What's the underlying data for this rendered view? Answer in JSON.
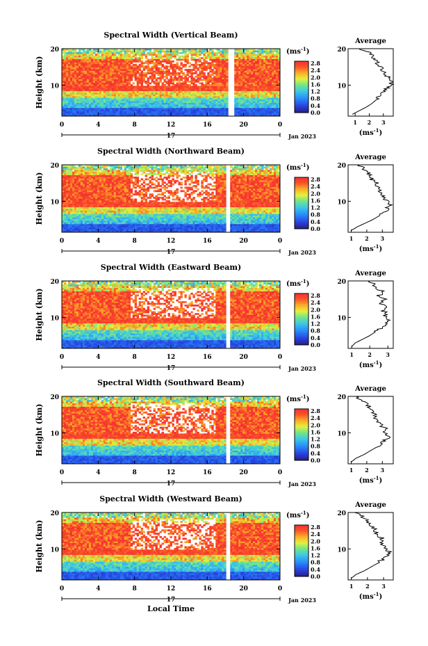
{
  "figure": {
    "xlabel_bottom": "Local Time",
    "ylabel": "Height (km)",
    "date_label": "Jan 2023",
    "day_label": "17",
    "colorbar_unit": "(ms",
    "colorbar_unit_exp": "-1",
    "colorbar_unit_close": ")",
    "avg_title": "Average",
    "avg_xlabel": "(ms",
    "avg_xlabel_exp": "-1",
    "avg_xlabel_close": ")"
  },
  "chart_data": [
    {
      "type": "heatmap",
      "title": "Spectral Width (Vertical Beam)",
      "beam": "vertical",
      "x_ticks": [
        "0",
        "4",
        "8",
        "12",
        "16",
        "20",
        "0"
      ],
      "xlim": [
        0,
        24
      ],
      "y_ticks": [
        "10",
        "20"
      ],
      "ylim": [
        1.5,
        20
      ],
      "colorbar_ticks": [
        "0.0",
        "0.4",
        "0.8",
        "1.2",
        "1.6",
        "2.0",
        "2.4",
        "2.8"
      ],
      "colorbar_range": [
        0,
        2.8
      ],
      "gap_hour": 18.6,
      "average_profile": {
        "type": "line",
        "x_ticks": [
          "1",
          "2",
          "3"
        ],
        "xlim": [
          0.5,
          3.7
        ],
        "ylim": [
          1.5,
          20
        ],
        "heights": [
          2,
          3,
          4,
          5,
          6,
          7,
          8,
          9,
          10,
          11,
          12,
          13,
          14,
          15,
          16,
          17,
          18,
          19,
          20
        ],
        "values": [
          0.8,
          1.3,
          1.8,
          2.2,
          2.5,
          2.7,
          2.9,
          3.2,
          3.5,
          3.6,
          3.4,
          3.1,
          2.9,
          2.8,
          2.6,
          2.4,
          2.2,
          2.0,
          1.3
        ]
      }
    },
    {
      "type": "heatmap",
      "title": "Spectral Width (Northward Beam)",
      "beam": "northward",
      "x_ticks": [
        "0",
        "4",
        "8",
        "12",
        "16",
        "20",
        "0"
      ],
      "xlim": [
        0,
        24
      ],
      "y_ticks": [
        "10",
        "20"
      ],
      "ylim": [
        1.5,
        20
      ],
      "colorbar_ticks": [
        "0.0",
        "0.4",
        "0.8",
        "1.2",
        "1.6",
        "2.0",
        "2.4",
        "2.8"
      ],
      "colorbar_range": [
        0,
        2.8
      ],
      "gap_hour": 18.3,
      "average_profile": {
        "type": "line",
        "x_ticks": [
          "1",
          "2",
          "3"
        ],
        "xlim": [
          0.8,
          3.7
        ],
        "ylim": [
          1.5,
          20
        ],
        "heights": [
          2,
          3,
          4,
          5,
          6,
          7,
          8,
          9,
          10,
          11,
          12,
          13,
          14,
          15,
          16,
          17,
          18,
          19,
          20
        ],
        "values": [
          1.0,
          1.4,
          1.9,
          2.4,
          2.8,
          3.1,
          3.3,
          3.6,
          3.3,
          3.1,
          3.0,
          2.8,
          2.7,
          2.6,
          2.3,
          2.2,
          2.0,
          1.8,
          1.5
        ]
      }
    },
    {
      "type": "heatmap",
      "title": "Spectral Width (Eastward Beam)",
      "beam": "eastward",
      "x_ticks": [
        "0",
        "4",
        "8",
        "12",
        "16",
        "20",
        "0"
      ],
      "xlim": [
        0,
        24
      ],
      "y_ticks": [
        "10",
        "20"
      ],
      "ylim": [
        1.5,
        20
      ],
      "colorbar_ticks": [
        "0.0",
        "0.4",
        "0.8",
        "1.2",
        "1.6",
        "2.0",
        "2.4",
        "2.8"
      ],
      "colorbar_range": [
        0,
        2.8
      ],
      "gap_hour": 18.3,
      "average_profile": {
        "type": "line",
        "x_ticks": [
          "1",
          "2",
          "3"
        ],
        "xlim": [
          0.8,
          3.3
        ],
        "ylim": [
          1.5,
          20
        ],
        "heights": [
          2,
          3,
          4,
          5,
          6,
          7,
          8,
          9,
          10,
          11,
          12,
          13,
          14,
          15,
          16,
          17,
          18,
          19,
          20
        ],
        "values": [
          1.0,
          1.2,
          1.6,
          2.0,
          2.3,
          2.6,
          2.9,
          3.1,
          2.8,
          3.0,
          2.7,
          2.9,
          2.6,
          2.8,
          2.5,
          2.7,
          2.4,
          2.2,
          2.0
        ]
      }
    },
    {
      "type": "heatmap",
      "title": "Spectral Width (Southward Beam)",
      "beam": "southward",
      "x_ticks": [
        "0",
        "4",
        "8",
        "12",
        "16",
        "20",
        "0"
      ],
      "xlim": [
        0,
        24
      ],
      "y_ticks": [
        "10",
        "20"
      ],
      "ylim": [
        1.5,
        20
      ],
      "colorbar_ticks": [
        "0.0",
        "0.4",
        "0.8",
        "1.2",
        "1.6",
        "2.0",
        "2.4",
        "2.8"
      ],
      "colorbar_range": [
        0,
        2.8
      ],
      "gap_hour": 18.3,
      "average_profile": {
        "type": "line",
        "x_ticks": [
          "1",
          "2",
          "3"
        ],
        "xlim": [
          0.8,
          3.7
        ],
        "ylim": [
          1.5,
          20
        ],
        "heights": [
          2,
          3,
          4,
          5,
          6,
          7,
          8,
          9,
          10,
          11,
          12,
          13,
          14,
          15,
          16,
          17,
          18,
          19,
          20
        ],
        "values": [
          1.0,
          1.3,
          1.8,
          2.2,
          2.6,
          2.9,
          3.2,
          3.4,
          3.1,
          3.3,
          2.9,
          2.8,
          2.6,
          2.5,
          2.4,
          2.2,
          2.0,
          1.7,
          1.3
        ]
      }
    },
    {
      "type": "heatmap",
      "title": "Spectral Width (Westward Beam)",
      "beam": "westward",
      "x_ticks": [
        "0",
        "4",
        "8",
        "12",
        "16",
        "20",
        "0"
      ],
      "xlim": [
        0,
        24
      ],
      "y_ticks": [
        "10",
        "20"
      ],
      "ylim": [
        1.5,
        20
      ],
      "colorbar_ticks": [
        "0.0",
        "0.4",
        "0.8",
        "1.2",
        "1.6",
        "2.0",
        "2.4",
        "2.8"
      ],
      "colorbar_range": [
        0,
        2.8
      ],
      "gap_hour": 18.3,
      "average_profile": {
        "type": "line",
        "x_ticks": [
          "1",
          "2",
          "3"
        ],
        "xlim": [
          0.8,
          3.6
        ],
        "ylim": [
          1.5,
          20
        ],
        "heights": [
          2,
          3,
          4,
          5,
          6,
          7,
          8,
          9,
          10,
          11,
          12,
          13,
          14,
          15,
          16,
          17,
          18,
          19,
          20
        ],
        "values": [
          1.0,
          1.3,
          1.8,
          2.2,
          2.6,
          2.9,
          3.2,
          3.4,
          3.2,
          3.0,
          2.8,
          2.9,
          2.6,
          2.5,
          2.3,
          2.1,
          1.9,
          1.6,
          1.2
        ]
      }
    }
  ]
}
